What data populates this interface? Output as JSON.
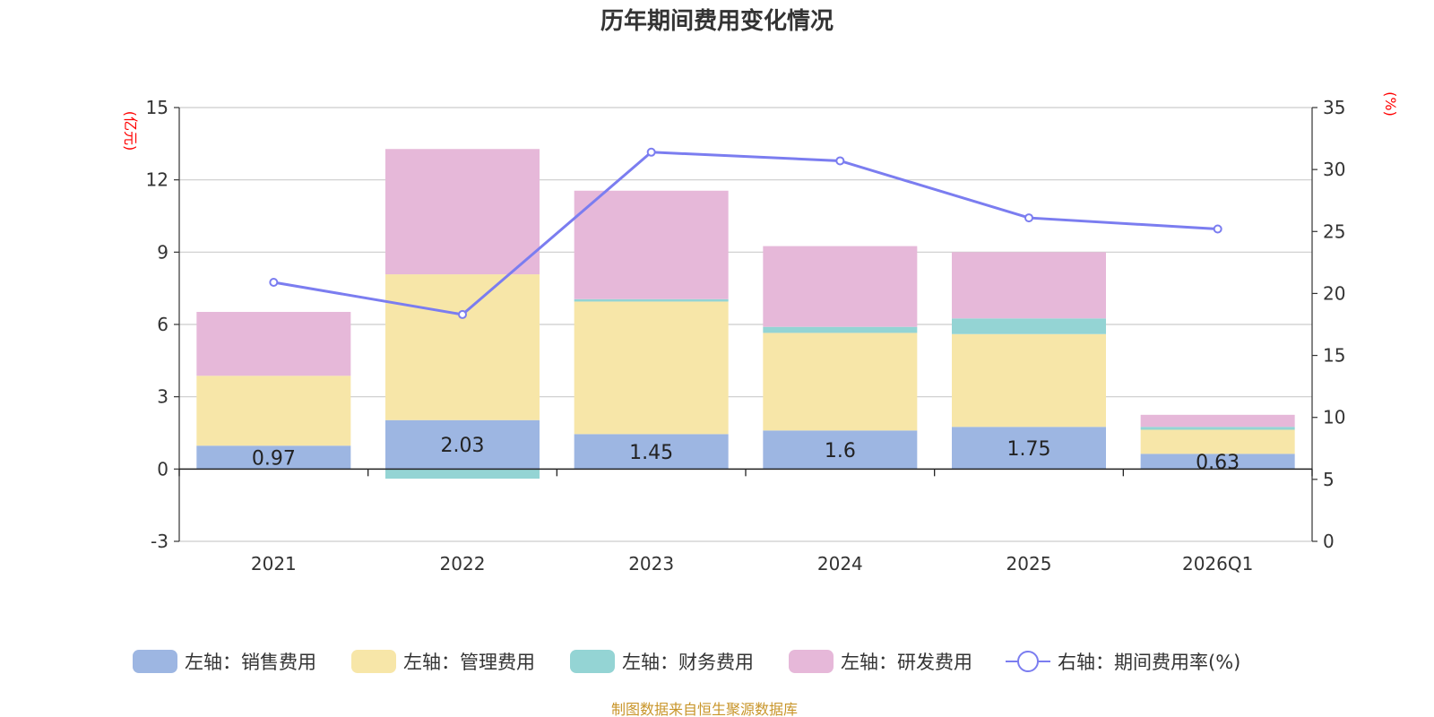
{
  "chart_data": {
    "type": "bar",
    "stacked": true,
    "title": "历年期间费用变化情况",
    "categories": [
      "2021",
      "2022",
      "2023",
      "2024",
      "2025",
      "2026Q1"
    ],
    "left_axis": {
      "unit": "(亿元)",
      "ylim": [
        -3,
        15
      ],
      "ticks": [
        -3,
        0,
        3,
        6,
        9,
        12,
        15
      ]
    },
    "right_axis": {
      "unit": "(%)",
      "ylim": [
        0,
        35
      ],
      "ticks": [
        0,
        5,
        10,
        15,
        20,
        25,
        30,
        35
      ]
    },
    "series": [
      {
        "name": "销售费用",
        "legend": "左轴：销售费用",
        "axis": "left",
        "color": "#9db6e2",
        "values": [
          0.97,
          2.03,
          1.45,
          1.6,
          1.75,
          0.63
        ],
        "labels": [
          "0.97",
          "2.03",
          "1.45",
          "1.6",
          "1.75",
          "0.63"
        ]
      },
      {
        "name": "管理费用",
        "legend": "左轴：管理费用",
        "axis": "left",
        "color": "#f7e6a8",
        "values": [
          2.9,
          6.05,
          5.5,
          4.05,
          3.85,
          1.0
        ]
      },
      {
        "name": "财务费用",
        "legend": "左轴：财务费用",
        "axis": "left",
        "color": "#94d4d4",
        "values": [
          0.0,
          -0.4,
          0.1,
          0.25,
          0.65,
          0.12
        ]
      },
      {
        "name": "研发费用",
        "legend": "左轴：研发费用",
        "axis": "left",
        "color": "#e6b8d9",
        "values": [
          2.65,
          5.2,
          4.5,
          3.35,
          2.75,
          0.5
        ]
      },
      {
        "name": "期间费用率",
        "legend": "右轴：期间费用率(%)",
        "axis": "right",
        "type": "line",
        "color": "#7b7df0",
        "values": [
          20.9,
          18.3,
          31.4,
          30.7,
          26.1,
          25.2
        ]
      }
    ],
    "grid": true,
    "legend_position": "bottom"
  },
  "footer": "制图数据来自恒生聚源数据库"
}
